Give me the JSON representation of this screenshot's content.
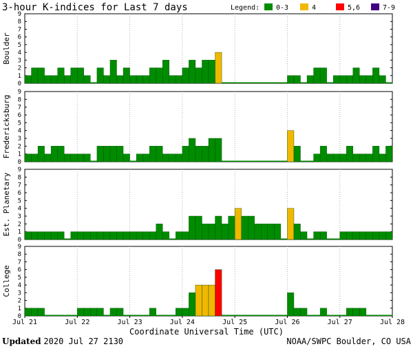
{
  "title": "3-hour K-indices for Last 7 days",
  "legend": {
    "label": "Legend:",
    "items": [
      {
        "label": "0-3",
        "color": "#008c00"
      },
      {
        "label": "4",
        "color": "#f0b800"
      },
      {
        "label": "5,6",
        "color": "#ff0000"
      },
      {
        "label": "7-9",
        "color": "#400080"
      }
    ]
  },
  "footer": {
    "updated_label": "Updated",
    "updated_value": "2020 Jul 27 2130",
    "source": "NOAA/SWPC Boulder, CO USA"
  },
  "chart_data": {
    "type": "bar",
    "xlabel": "Coordinate Universal Time (UTC)",
    "x_ticks": [
      "Jul 21",
      "Jul 22",
      "Jul 23",
      "Jul 24",
      "Jul 25",
      "Jul 26",
      "Jul 27",
      "Jul 28"
    ],
    "ylim": [
      0,
      9
    ],
    "y_ticks": [
      "0",
      "1",
      "2",
      "3",
      "4",
      "5",
      "6",
      "7",
      "8",
      "9"
    ],
    "slots_per_day": 8,
    "series": [
      {
        "name": "Boulder",
        "values": [
          1,
          2,
          2,
          1,
          1,
          2,
          1,
          2,
          2,
          1,
          0,
          2,
          1,
          3,
          1,
          2,
          1,
          1,
          1,
          2,
          2,
          3,
          1,
          1,
          2,
          3,
          2,
          3,
          3,
          4,
          0,
          0,
          0,
          0,
          0,
          0,
          0,
          0,
          0,
          0,
          1,
          1,
          0,
          1,
          2,
          2,
          0,
          1,
          1,
          1,
          2,
          1,
          1,
          2,
          1,
          0
        ]
      },
      {
        "name": "Fredericksburg",
        "values": [
          1,
          1,
          2,
          1,
          2,
          2,
          1,
          1,
          1,
          1,
          0,
          2,
          2,
          2,
          2,
          1,
          0,
          1,
          1,
          2,
          2,
          1,
          1,
          1,
          2,
          3,
          2,
          2,
          3,
          3,
          0,
          0,
          0,
          0,
          0,
          0,
          0,
          0,
          0,
          0,
          4,
          2,
          0,
          0,
          1,
          2,
          1,
          1,
          1,
          2,
          1,
          1,
          1,
          2,
          1,
          2
        ]
      },
      {
        "name": "Est. Planetary",
        "values": [
          1,
          1,
          1,
          1,
          1,
          1,
          0,
          1,
          1,
          1,
          1,
          1,
          1,
          1,
          1,
          1,
          1,
          1,
          1,
          1,
          2,
          1,
          0,
          1,
          1,
          3,
          3,
          2,
          2,
          3,
          2,
          3,
          4,
          3,
          3,
          2,
          2,
          2,
          2,
          0,
          4,
          2,
          1,
          0,
          1,
          1,
          0,
          0,
          1,
          1,
          1,
          1,
          1,
          1,
          1,
          1
        ]
      },
      {
        "name": "College",
        "values": [
          1,
          1,
          1,
          0,
          0,
          0,
          0,
          0,
          1,
          1,
          1,
          1,
          0,
          1,
          1,
          0,
          0,
          0,
          0,
          1,
          0,
          0,
          0,
          1,
          1,
          3,
          4,
          4,
          4,
          6,
          0,
          0,
          0,
          0,
          0,
          0,
          0,
          0,
          0,
          0,
          3,
          1,
          1,
          0,
          0,
          1,
          0,
          0,
          0,
          1,
          1,
          1,
          0,
          0,
          0,
          0
        ]
      }
    ]
  }
}
